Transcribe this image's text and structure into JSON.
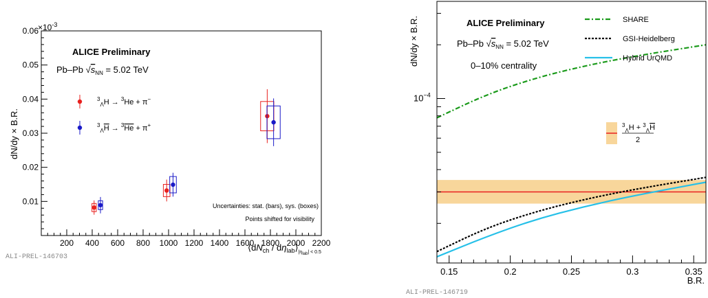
{
  "chart_data": [
    {
      "type": "scatter",
      "title": "ALICE Preliminary",
      "system_prefix": "Pb–Pb ",
      "system_sqrt": "s",
      "system_sub": "NN",
      "system_suffix": " = 5.02 TeV",
      "ylabel": "dN/dy × B.R.",
      "xlabel": "⟨dN_ch / dη_lab⟩_|η_lab| < 0.5",
      "xlabel_parts": {
        "open": "⟨d",
        "N": "N",
        "ch": "ch",
        "mid": " / d",
        "eta": "η",
        "lab": "lab",
        "close": "⟩",
        "sub": "|η",
        "sub2": "lab",
        "sub3": "| < 0.5"
      },
      "y_exponent": "×10",
      "y_exponent_power": "-3",
      "xlim": [
        0,
        2200
      ],
      "ylim": [
        0,
        0.06
      ],
      "xticks": [
        200,
        400,
        600,
        800,
        1000,
        1200,
        1400,
        1600,
        1800,
        2000,
        2200
      ],
      "xtick_labels": [
        "200",
        "400",
        "600",
        "800",
        "1000",
        "1200",
        "1400",
        "1600",
        "1800",
        "2000",
        "2200"
      ],
      "yticks": [
        0.01,
        0.02,
        0.03,
        0.04,
        0.05,
        0.06
      ],
      "ytick_labels": [
        "0.01",
        "0.02",
        "0.03",
        "0.04",
        "0.05",
        "0.06"
      ],
      "grid": false,
      "series": [
        {
          "name": "³_ΛH → ³He + π⁻",
          "legend_parts": [
            "3",
            "Λ",
            "H → ",
            "3",
            "He + π",
            "−"
          ],
          "color": "#e8201e",
          "x": [
            415,
            985,
            1775
          ],
          "y": [
            0.0082,
            0.0132,
            0.035
          ],
          "stat_err": [
            0.0021,
            0.0032,
            0.0079
          ],
          "sys_box_halfwidth_x": [
            17,
            26,
            52
          ],
          "sys_err": [
            0.0012,
            0.0018,
            0.0043
          ]
        },
        {
          "name": "³_Λ anti-H → ³ anti-He + π⁺",
          "legend_parts": [
            "3",
            "Λ",
            "H",
            " → ",
            "3",
            "He",
            " + π",
            "+"
          ],
          "color": "#1a1ac8",
          "x": [
            465,
            1035,
            1825
          ],
          "y": [
            0.0089,
            0.0149,
            0.0332
          ],
          "stat_err": [
            0.0024,
            0.0035,
            0.007
          ],
          "sys_box_halfwidth_x": [
            17,
            26,
            52
          ],
          "sys_err": [
            0.0013,
            0.0024,
            0.0048
          ]
        }
      ],
      "annotations": [
        "Uncertainties: stat. (bars), sys. (boxes)",
        "Points shifted for visibility"
      ],
      "figure_id": "ALI-PREL-146703"
    },
    {
      "type": "line",
      "title": "ALICE Preliminary",
      "system_prefix": "Pb–Pb ",
      "system_sqrt": "s",
      "system_sub": "NN",
      "system_suffix": " = 5.02 TeV",
      "centrality": "0–10% centrality",
      "ylabel": "dN/dy × B.R.",
      "xlabel": "B.R.",
      "y_scale": "log",
      "xlim": [
        0.14,
        0.36
      ],
      "ylim": [
        1.2e-05,
        0.00035
      ],
      "xticks": [
        0.15,
        0.2,
        0.25,
        0.3,
        0.35
      ],
      "xtick_labels": [
        "0.15",
        "0.2",
        "0.25",
        "0.3",
        "0.35"
      ],
      "ytick_label": "10",
      "ytick_label_power": "−4",
      "ytick_value": 0.0001,
      "grid": false,
      "series": [
        {
          "name": "SHARE",
          "color": "#1a9a1a",
          "style": "dash-dot",
          "x": [
            0.14,
            0.18,
            0.22,
            0.26,
            0.3,
            0.36
          ],
          "y": [
            7.8e-05,
            0.000105,
            0.00013,
            0.000152,
            0.000172,
            0.0002
          ]
        },
        {
          "name": "GSI-Heidelberg",
          "color": "#000000",
          "style": "dotted",
          "x": [
            0.14,
            0.18,
            0.22,
            0.26,
            0.3,
            0.36
          ],
          "y": [
            1.39e-05,
            1.88e-05,
            2.32e-05,
            2.72e-05,
            3.09e-05,
            3.62e-05
          ]
        },
        {
          "name": "Hybrid UrQMD",
          "color": "#26c0e8",
          "style": "solid",
          "x": [
            0.14,
            0.18,
            0.22,
            0.26,
            0.3,
            0.36
          ],
          "y": [
            1.3e-05,
            1.68e-05,
            2.1e-05,
            2.48e-05,
            2.85e-05,
            3.4e-05
          ]
        }
      ],
      "band": {
        "name": "(³_ΛH + ³_Λ anti-H)/2",
        "legend_parts": {
          "sup1": "3",
          "sub1": "Λ",
          "h1": "H + ",
          "sup2": "3",
          "sub2": "Λ",
          "h2": "H",
          "den": "2"
        },
        "color": "#e8201e",
        "fill": "#f5c87a",
        "value": 3e-05,
        "low": 2.58e-05,
        "high": 3.5e-05
      },
      "figure_id": "ALI-PREL-146719"
    }
  ]
}
